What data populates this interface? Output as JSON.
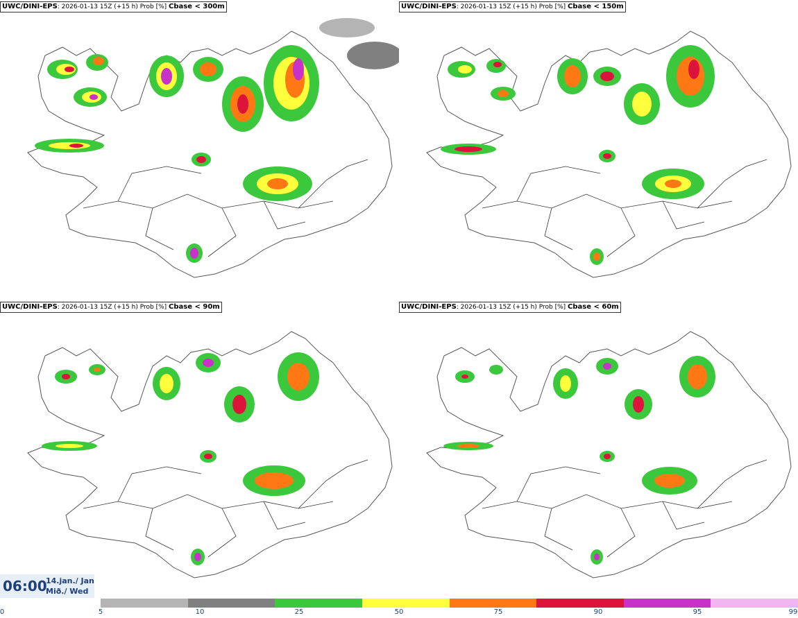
{
  "panels": [
    {
      "model": "UWC/DINI-EPS",
      "run": ": 2026-01-13 15Z (+15 h) Prob [%]",
      "param": "Cbase < 300m"
    },
    {
      "model": "UWC/DINI-EPS",
      "run": ": 2026-01-13 15Z (+15 h) Prob [%]",
      "param": "Cbase < 150m"
    },
    {
      "model": "UWC/DINI-EPS",
      "run": ": 2026-01-13 15Z (+15 h) Prob [%]",
      "param": "Cbase < 90m"
    },
    {
      "model": "UWC/DINI-EPS",
      "run": ": 2026-01-13 15Z (+15 h) Prob [%]",
      "param": "Cbase < 60m"
    }
  ],
  "valid_time": {
    "time": "06:00",
    "date": "14.jan./ Jan",
    "weekday": "Mið./ Wed"
  },
  "legend": {
    "ticks": [
      "0",
      "5",
      "10",
      "25",
      "50",
      "75",
      "90",
      "95",
      "99"
    ],
    "colors": [
      "#b4b4b4",
      "#808080",
      "#3cc83c",
      "#ffff3c",
      "#ff7814",
      "#dc143c",
      "#c832c8",
      "#f0b4f0"
    ]
  },
  "colors": {
    "land_outline": "#555555",
    "roads": "#333333",
    "accent": "#1f3f78"
  }
}
